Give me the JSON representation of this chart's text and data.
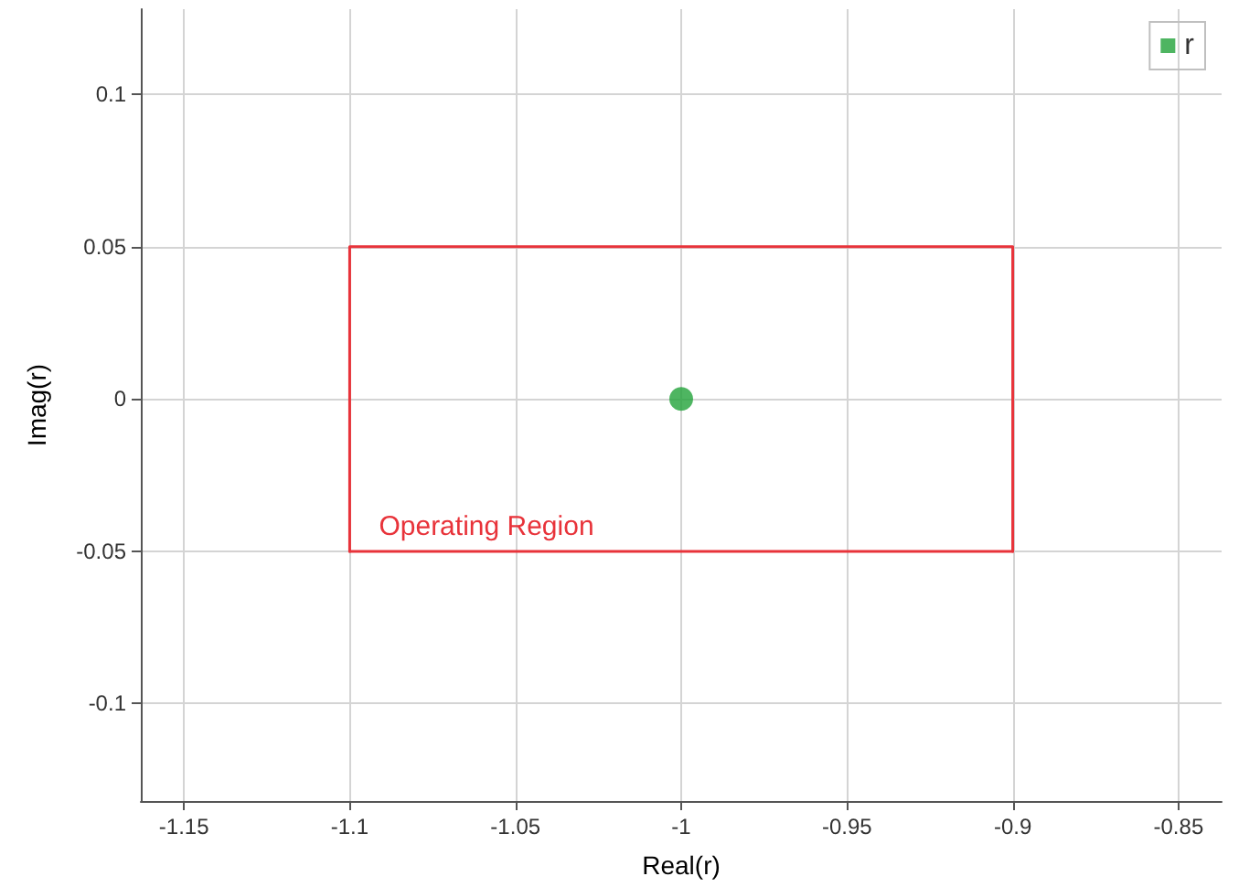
{
  "chart_data": {
    "type": "scatter",
    "xlabel": "Real(r)",
    "ylabel": "Imag(r)",
    "series": [
      {
        "name": "r",
        "color": "#22a33a",
        "x": [
          -1
        ],
        "values": [
          0
        ],
        "marker": "circle"
      },
      {
        "type": "line",
        "color": "#e8333a",
        "x": [
          -1.1,
          -1.1,
          -0.9,
          -0.9
        ],
        "values": [
          -0.05,
          0.05,
          0.05,
          -0.05
        ],
        "marker": "none",
        "line_style": "solid"
      },
      {
        "type": "line",
        "color": "#e8333a",
        "x": [
          -1.1,
          -0.9
        ],
        "values": [
          -0.05,
          -0.05
        ],
        "marker": "none",
        "line_style": "solid"
      }
    ],
    "annotations": [
      {
        "text": "Operating Region",
        "x": -1.1,
        "y": -0.05
      }
    ],
    "xlim": [
      -1.163,
      -0.837
    ],
    "xticks": [
      -1.15,
      -1.1,
      -1.05,
      -1,
      -0.95,
      -0.9,
      -0.85
    ],
    "ylim": [
      -0.132,
      0.128
    ],
    "yticks": [
      -0.1,
      -0.05,
      0,
      0.05,
      0.1
    ],
    "grid": true,
    "legend": "top right"
  }
}
